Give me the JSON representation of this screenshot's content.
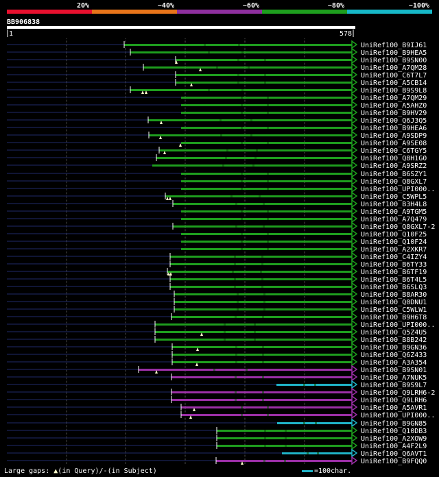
{
  "legend": {
    "bands": [
      {
        "label": "20%",
        "color": "#e8102e"
      },
      {
        "label": "~40%",
        "color": "#e8741a"
      },
      {
        "label": "~60%",
        "color": "#8e2f9e"
      },
      {
        "label": "~80%",
        "color": "#1e9e1e"
      },
      {
        "label": "~100%",
        "color": "#17b8c8"
      }
    ]
  },
  "query": {
    "id": "BB906838",
    "start": "1",
    "end": "578"
  },
  "colors": {
    "green": "#1e9e1e",
    "purple": "#9b2fa6",
    "cyan": "#1fb4c8",
    "navy": "#202a6a",
    "grid": "#555555",
    "marker": "#ffffcc"
  },
  "hits": [
    {
      "name": "UniRef100_B9IJ61",
      "color": "green"
    },
    {
      "name": "UniRef100_B9HEA5",
      "color": "green"
    },
    {
      "name": "UniRef100_B9SN00",
      "color": "green"
    },
    {
      "name": "UniRef100_A7QM28",
      "color": "green"
    },
    {
      "name": "UniRef100_C6T7L7",
      "color": "green"
    },
    {
      "name": "UniRef100_A5CB14",
      "color": "green"
    },
    {
      "name": "UniRef100_B9S9L8",
      "color": "green"
    },
    {
      "name": "UniRef100_A7QM29",
      "color": "green"
    },
    {
      "name": "UniRef100_A5AHZ0",
      "color": "green"
    },
    {
      "name": "UniRef100_B9HV29",
      "color": "green"
    },
    {
      "name": "UniRef100_Q6J3Q5",
      "color": "green"
    },
    {
      "name": "UniRef100_B9HEA6",
      "color": "green"
    },
    {
      "name": "UniRef100_A9SDP9",
      "color": "green"
    },
    {
      "name": "UniRef100_A9SE08",
      "color": "green"
    },
    {
      "name": "UniRef100_C6TGY5",
      "color": "green"
    },
    {
      "name": "UniRef100_Q8H1G0",
      "color": "green"
    },
    {
      "name": "UniRef100_A9SRZ2",
      "color": "green"
    },
    {
      "name": "UniRef100_B6SZY1",
      "color": "green"
    },
    {
      "name": "UniRef100_Q8GXL7",
      "color": "green"
    },
    {
      "name": "UniRef100_UPI000..",
      "color": "green"
    },
    {
      "name": "UniRef100_C5WPL5",
      "color": "green"
    },
    {
      "name": "UniRef100_B3H4L8",
      "color": "green"
    },
    {
      "name": "UniRef100_A9TGM5",
      "color": "green"
    },
    {
      "name": "UniRef100_A7Q479",
      "color": "green"
    },
    {
      "name": "UniRef100_Q8GXL7-2",
      "color": "green"
    },
    {
      "name": "UniRef100_Q10F25",
      "color": "green"
    },
    {
      "name": "UniRef100_Q10F24",
      "color": "green"
    },
    {
      "name": "UniRef100_A2XKR7",
      "color": "green"
    },
    {
      "name": "UniRef100_C4IZY4",
      "color": "green"
    },
    {
      "name": "UniRef100_B6TY33",
      "color": "green"
    },
    {
      "name": "UniRef100_B6TF19",
      "color": "green"
    },
    {
      "name": "UniRef100_B6T4L5",
      "color": "green"
    },
    {
      "name": "UniRef100_B6SLQ3",
      "color": "green"
    },
    {
      "name": "UniRef100_B8AR30",
      "color": "green"
    },
    {
      "name": "UniRef100_Q0DNU1",
      "color": "green"
    },
    {
      "name": "UniRef100_C5WLW1",
      "color": "green"
    },
    {
      "name": "UniRef100_B9H6T8",
      "color": "green"
    },
    {
      "name": "UniRef100_UPI000..",
      "color": "green"
    },
    {
      "name": "UniRef100_Q5Z4U5",
      "color": "green"
    },
    {
      "name": "UniRef100_B8B242",
      "color": "green"
    },
    {
      "name": "UniRef100_B9GN36",
      "color": "green"
    },
    {
      "name": "UniRef100_Q6Z433",
      "color": "green"
    },
    {
      "name": "UniRef100_A3A354",
      "color": "green"
    },
    {
      "name": "UniRef100_B9SN01",
      "color": "purple"
    },
    {
      "name": "UniRef100_A7NUK5",
      "color": "purple"
    },
    {
      "name": "UniRef100_B9S9L7",
      "color": "cyan"
    },
    {
      "name": "UniRef100_Q9LRH6-2",
      "color": "purple"
    },
    {
      "name": "UniRef100_Q9LRH6",
      "color": "purple"
    },
    {
      "name": "UniRef100_A5AVR1",
      "color": "purple"
    },
    {
      "name": "UniRef100_UPI000..",
      "color": "purple"
    },
    {
      "name": "UniRef100_B9GN85",
      "color": "cyan"
    },
    {
      "name": "UniRef100_Q10DB3",
      "color": "green"
    },
    {
      "name": "UniRef100_A2XOW9",
      "color": "green"
    },
    {
      "name": "UniRef100_A4F2L9",
      "color": "green"
    },
    {
      "name": "UniRef100_Q6AVT1",
      "color": "cyan"
    },
    {
      "name": "UniRef100_B9FQQ0",
      "color": "purple"
    }
  ],
  "footer": {
    "large_gaps_label": "Large gaps:",
    "in_query": "(in Query)/",
    "gap_dash": "-",
    "in_subject": "(in Subject)",
    "scale_label": "=100char."
  }
}
